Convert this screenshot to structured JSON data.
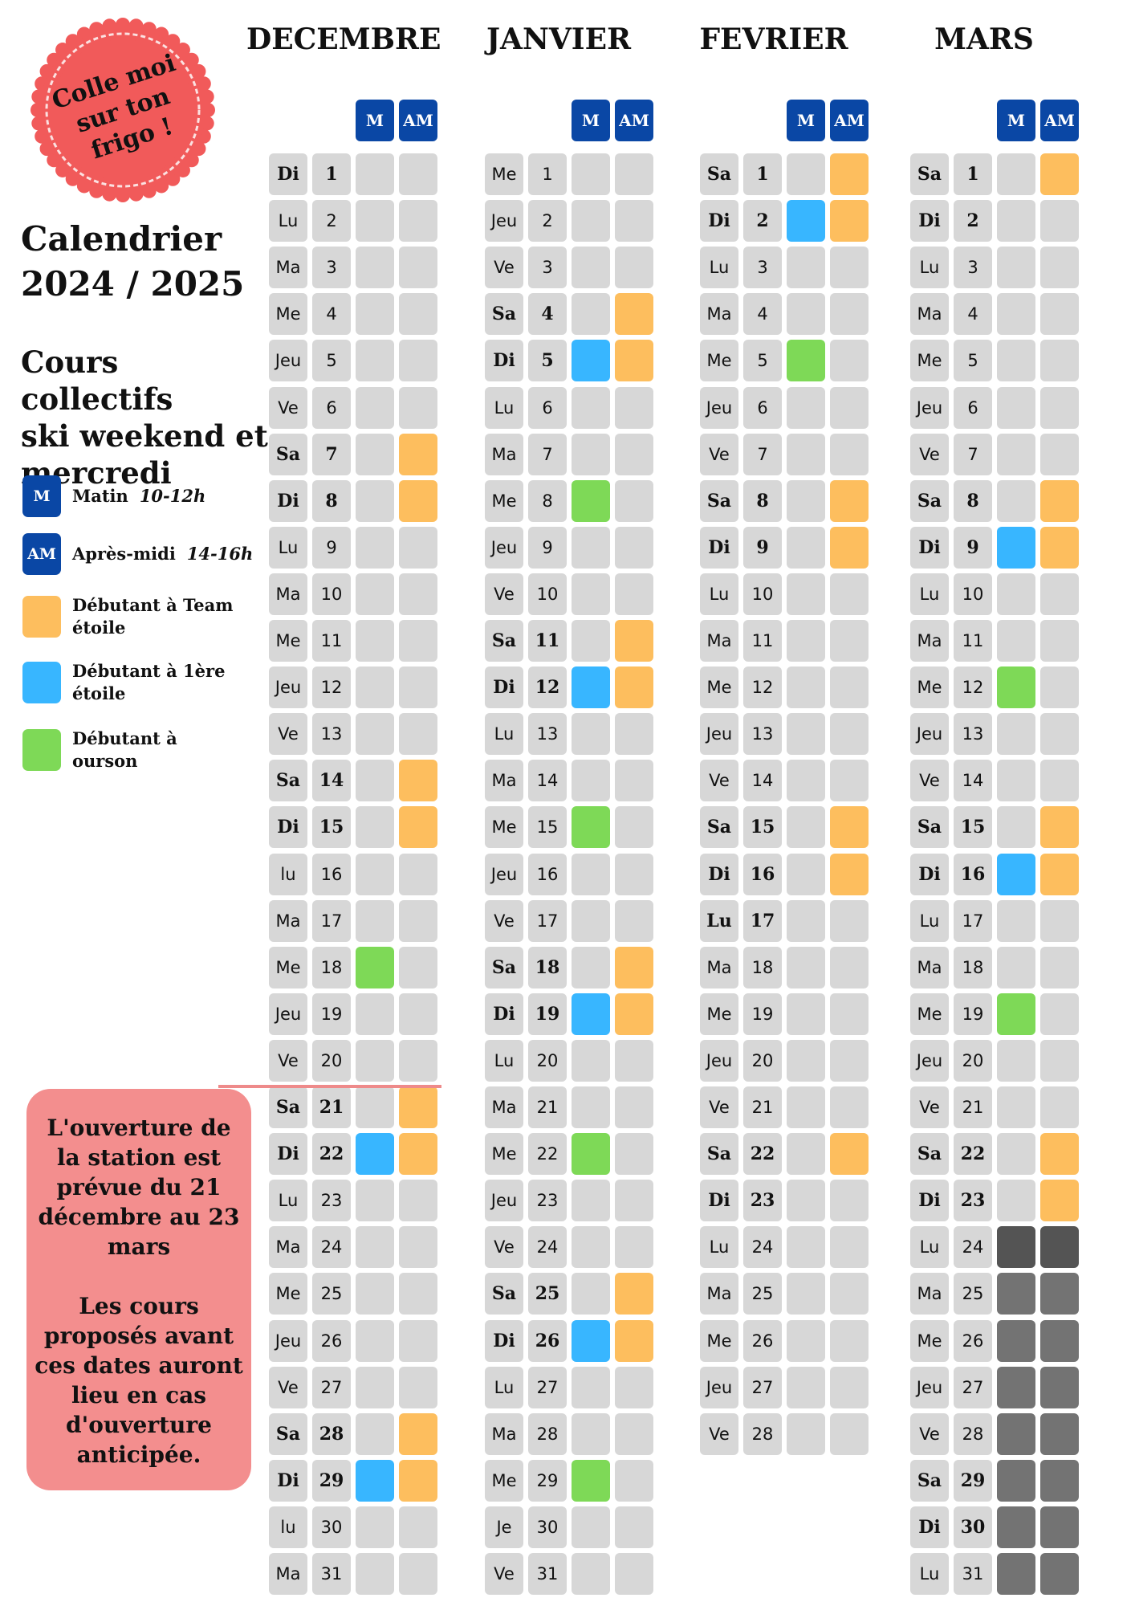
{
  "stamp": {
    "lines": [
      "Colle moi",
      "sur ton",
      "frigo !"
    ]
  },
  "title": {
    "line1": "Calendrier",
    "line2": "2024 / 2025"
  },
  "subtitle": {
    "line1": "Cours collectifs",
    "line2": "ski weekend et",
    "line3": "mercredi"
  },
  "legend": [
    {
      "badge": "M",
      "label": "Matin",
      "detail": "10-12h",
      "color": "#0a47a5"
    },
    {
      "badge": "AM",
      "label": "Après-midi",
      "detail": "14-16h",
      "color": "#0a47a5"
    },
    {
      "badge": "",
      "label": "Débutant à Team étoile",
      "detail": "",
      "color": "#fdbe5e"
    },
    {
      "badge": "",
      "label": "Débutant à 1ère étoile",
      "detail": "",
      "color": "#38b6ff"
    },
    {
      "badge": "",
      "label": "Débutant à ourson",
      "detail": "",
      "color": "#7ed957"
    }
  ],
  "colors": {
    "orange": "#fdbe5e",
    "blue": "#38b6ff",
    "green": "#7ed957",
    "grey": "#d7d7d7",
    "dark": "#545454",
    "closed": "#737373",
    "header": "#0a47a5"
  },
  "headers": {
    "morning": "M",
    "afternoon": "AM"
  },
  "notice": {
    "para1": "L'ouverture de la station est prévue du 21 décembre au 23 mars",
    "para2": "Les cours proposés avant ces dates auront lieu en cas d'ouverture anticipée."
  },
  "months": [
    {
      "name": "DECEMBRE",
      "days": [
        {
          "dow": "Di",
          "num": "1",
          "b": true,
          "m": "",
          "am": ""
        },
        {
          "dow": "Lu",
          "num": "2",
          "b": false,
          "m": "",
          "am": ""
        },
        {
          "dow": "Ma",
          "num": "3",
          "b": false,
          "m": "",
          "am": ""
        },
        {
          "dow": "Me",
          "num": "4",
          "b": false,
          "m": "",
          "am": ""
        },
        {
          "dow": "Jeu",
          "num": "5",
          "b": false,
          "m": "",
          "am": ""
        },
        {
          "dow": "Ve",
          "num": "6",
          "b": false,
          "m": "",
          "am": ""
        },
        {
          "dow": "Sa",
          "num": "7",
          "b": true,
          "m": "",
          "am": "orange"
        },
        {
          "dow": "Di",
          "num": "8",
          "b": true,
          "m": "",
          "am": "orange"
        },
        {
          "dow": "Lu",
          "num": "9",
          "b": false,
          "m": "",
          "am": ""
        },
        {
          "dow": "Ma",
          "num": "10",
          "b": false,
          "m": "",
          "am": ""
        },
        {
          "dow": "Me",
          "num": "11",
          "b": false,
          "m": "",
          "am": ""
        },
        {
          "dow": "Jeu",
          "num": "12",
          "b": false,
          "m": "",
          "am": ""
        },
        {
          "dow": "Ve",
          "num": "13",
          "b": false,
          "m": "",
          "am": ""
        },
        {
          "dow": "Sa",
          "num": "14",
          "b": true,
          "m": "",
          "am": "orange"
        },
        {
          "dow": "Di",
          "num": "15",
          "b": true,
          "m": "",
          "am": "orange"
        },
        {
          "dow": "lu",
          "num": "16",
          "b": false,
          "m": "",
          "am": ""
        },
        {
          "dow": "Ma",
          "num": "17",
          "b": false,
          "m": "",
          "am": ""
        },
        {
          "dow": "Me",
          "num": "18",
          "b": false,
          "m": "green",
          "am": ""
        },
        {
          "dow": "Jeu",
          "num": "19",
          "b": false,
          "m": "",
          "am": ""
        },
        {
          "dow": "Ve",
          "num": "20",
          "b": false,
          "m": "",
          "am": ""
        },
        {
          "dow": "Sa",
          "num": "21",
          "b": true,
          "m": "",
          "am": "orange"
        },
        {
          "dow": "Di",
          "num": "22",
          "b": true,
          "m": "blue",
          "am": "orange"
        },
        {
          "dow": "Lu",
          "num": "23",
          "b": false,
          "m": "",
          "am": ""
        },
        {
          "dow": "Ma",
          "num": "24",
          "b": false,
          "m": "",
          "am": ""
        },
        {
          "dow": "Me",
          "num": "25",
          "b": false,
          "m": "",
          "am": ""
        },
        {
          "dow": "Jeu",
          "num": "26",
          "b": false,
          "m": "",
          "am": ""
        },
        {
          "dow": "Ve",
          "num": "27",
          "b": false,
          "m": "",
          "am": ""
        },
        {
          "dow": "Sa",
          "num": "28",
          "b": true,
          "m": "",
          "am": "orange"
        },
        {
          "dow": "Di",
          "num": "29",
          "b": true,
          "m": "blue",
          "am": "orange"
        },
        {
          "dow": "lu",
          "num": "30",
          "b": false,
          "m": "",
          "am": ""
        },
        {
          "dow": "Ma",
          "num": "31",
          "b": false,
          "m": "",
          "am": ""
        }
      ]
    },
    {
      "name": "JANVIER",
      "days": [
        {
          "dow": "Me",
          "num": "1",
          "b": false,
          "m": "",
          "am": ""
        },
        {
          "dow": "Jeu",
          "num": "2",
          "b": false,
          "m": "",
          "am": ""
        },
        {
          "dow": "Ve",
          "num": "3",
          "b": false,
          "m": "",
          "am": ""
        },
        {
          "dow": "Sa",
          "num": "4",
          "b": true,
          "m": "",
          "am": "orange"
        },
        {
          "dow": "Di",
          "num": "5",
          "b": true,
          "m": "blue",
          "am": "orange"
        },
        {
          "dow": "Lu",
          "num": "6",
          "b": false,
          "m": "",
          "am": ""
        },
        {
          "dow": "Ma",
          "num": "7",
          "b": false,
          "m": "",
          "am": ""
        },
        {
          "dow": "Me",
          "num": "8",
          "b": false,
          "m": "green",
          "am": ""
        },
        {
          "dow": "Jeu",
          "num": "9",
          "b": false,
          "m": "",
          "am": ""
        },
        {
          "dow": "Ve",
          "num": "10",
          "b": false,
          "m": "",
          "am": ""
        },
        {
          "dow": "Sa",
          "num": "11",
          "b": true,
          "m": "",
          "am": "orange"
        },
        {
          "dow": "Di",
          "num": "12",
          "b": true,
          "m": "blue",
          "am": "orange"
        },
        {
          "dow": "Lu",
          "num": "13",
          "b": false,
          "m": "",
          "am": ""
        },
        {
          "dow": "Ma",
          "num": "14",
          "b": false,
          "m": "",
          "am": ""
        },
        {
          "dow": "Me",
          "num": "15",
          "b": false,
          "m": "green",
          "am": ""
        },
        {
          "dow": "Jeu",
          "num": "16",
          "b": false,
          "m": "",
          "am": ""
        },
        {
          "dow": "Ve",
          "num": "17",
          "b": false,
          "m": "",
          "am": ""
        },
        {
          "dow": "Sa",
          "num": "18",
          "b": true,
          "m": "",
          "am": "orange"
        },
        {
          "dow": "Di",
          "num": "19",
          "b": true,
          "m": "blue",
          "am": "orange"
        },
        {
          "dow": "Lu",
          "num": "20",
          "b": false,
          "m": "",
          "am": ""
        },
        {
          "dow": "Ma",
          "num": "21",
          "b": false,
          "m": "",
          "am": ""
        },
        {
          "dow": "Me",
          "num": "22",
          "b": false,
          "m": "green",
          "am": ""
        },
        {
          "dow": "Jeu",
          "num": "23",
          "b": false,
          "m": "",
          "am": ""
        },
        {
          "dow": "Ve",
          "num": "24",
          "b": false,
          "m": "",
          "am": ""
        },
        {
          "dow": "Sa",
          "num": "25",
          "b": true,
          "m": "",
          "am": "orange"
        },
        {
          "dow": "Di",
          "num": "26",
          "b": true,
          "m": "blue",
          "am": "orange"
        },
        {
          "dow": "Lu",
          "num": "27",
          "b": false,
          "m": "",
          "am": ""
        },
        {
          "dow": "Ma",
          "num": "28",
          "b": false,
          "m": "",
          "am": ""
        },
        {
          "dow": "Me",
          "num": "29",
          "b": false,
          "m": "green",
          "am": ""
        },
        {
          "dow": "Je",
          "num": "30",
          "b": false,
          "m": "",
          "am": ""
        },
        {
          "dow": "Ve",
          "num": "31",
          "b": false,
          "m": "",
          "am": ""
        }
      ]
    },
    {
      "name": "FEVRIER",
      "days": [
        {
          "dow": "Sa",
          "num": "1",
          "b": true,
          "m": "",
          "am": "orange"
        },
        {
          "dow": "Di",
          "num": "2",
          "b": true,
          "m": "blue",
          "am": "orange"
        },
        {
          "dow": "Lu",
          "num": "3",
          "b": false,
          "m": "",
          "am": ""
        },
        {
          "dow": "Ma",
          "num": "4",
          "b": false,
          "m": "",
          "am": ""
        },
        {
          "dow": "Me",
          "num": "5",
          "b": false,
          "m": "green",
          "am": ""
        },
        {
          "dow": "Jeu",
          "num": "6",
          "b": false,
          "m": "",
          "am": ""
        },
        {
          "dow": "Ve",
          "num": "7",
          "b": false,
          "m": "",
          "am": ""
        },
        {
          "dow": "Sa",
          "num": "8",
          "b": true,
          "m": "",
          "am": "orange"
        },
        {
          "dow": "Di",
          "num": "9",
          "b": true,
          "m": "",
          "am": "orange"
        },
        {
          "dow": "Lu",
          "num": "10",
          "b": false,
          "m": "",
          "am": ""
        },
        {
          "dow": "Ma",
          "num": "11",
          "b": false,
          "m": "",
          "am": ""
        },
        {
          "dow": "Me",
          "num": "12",
          "b": false,
          "m": "",
          "am": ""
        },
        {
          "dow": "Jeu",
          "num": "13",
          "b": false,
          "m": "",
          "am": ""
        },
        {
          "dow": "Ve",
          "num": "14",
          "b": false,
          "m": "",
          "am": ""
        },
        {
          "dow": "Sa",
          "num": "15",
          "b": true,
          "m": "",
          "am": "orange"
        },
        {
          "dow": "Di",
          "num": "16",
          "b": true,
          "m": "",
          "am": "orange"
        },
        {
          "dow": "Lu",
          "num": "17",
          "b": true,
          "m": "",
          "am": ""
        },
        {
          "dow": "Ma",
          "num": "18",
          "b": false,
          "m": "",
          "am": ""
        },
        {
          "dow": "Me",
          "num": "19",
          "b": false,
          "m": "",
          "am": ""
        },
        {
          "dow": "Jeu",
          "num": "20",
          "b": false,
          "m": "",
          "am": ""
        },
        {
          "dow": "Ve",
          "num": "21",
          "b": false,
          "m": "",
          "am": ""
        },
        {
          "dow": "Sa",
          "num": "22",
          "b": true,
          "m": "",
          "am": "orange"
        },
        {
          "dow": "Di",
          "num": "23",
          "b": true,
          "m": "",
          "am": ""
        },
        {
          "dow": "Lu",
          "num": "24",
          "b": false,
          "m": "",
          "am": ""
        },
        {
          "dow": "Ma",
          "num": "25",
          "b": false,
          "m": "",
          "am": ""
        },
        {
          "dow": "Me",
          "num": "26",
          "b": false,
          "m": "",
          "am": ""
        },
        {
          "dow": "Jeu",
          "num": "27",
          "b": false,
          "m": "",
          "am": ""
        },
        {
          "dow": "Ve",
          "num": "28",
          "b": false,
          "m": "",
          "am": ""
        }
      ]
    },
    {
      "name": "MARS",
      "days": [
        {
          "dow": "Sa",
          "num": "1",
          "b": true,
          "m": "",
          "am": "orange"
        },
        {
          "dow": "Di",
          "num": "2",
          "b": true,
          "m": "",
          "am": ""
        },
        {
          "dow": "Lu",
          "num": "3",
          "b": false,
          "m": "",
          "am": ""
        },
        {
          "dow": "Ma",
          "num": "4",
          "b": false,
          "m": "",
          "am": ""
        },
        {
          "dow": "Me",
          "num": "5",
          "b": false,
          "m": "",
          "am": ""
        },
        {
          "dow": "Jeu",
          "num": "6",
          "b": false,
          "m": "",
          "am": ""
        },
        {
          "dow": "Ve",
          "num": "7",
          "b": false,
          "m": "",
          "am": ""
        },
        {
          "dow": "Sa",
          "num": "8",
          "b": true,
          "m": "",
          "am": "orange"
        },
        {
          "dow": "Di",
          "num": "9",
          "b": true,
          "m": "blue",
          "am": "orange"
        },
        {
          "dow": "Lu",
          "num": "10",
          "b": false,
          "m": "",
          "am": ""
        },
        {
          "dow": "Ma",
          "num": "11",
          "b": false,
          "m": "",
          "am": ""
        },
        {
          "dow": "Me",
          "num": "12",
          "b": false,
          "m": "green",
          "am": ""
        },
        {
          "dow": "Jeu",
          "num": "13",
          "b": false,
          "m": "",
          "am": ""
        },
        {
          "dow": "Ve",
          "num": "14",
          "b": false,
          "m": "",
          "am": ""
        },
        {
          "dow": "Sa",
          "num": "15",
          "b": true,
          "m": "",
          "am": "orange"
        },
        {
          "dow": "Di",
          "num": "16",
          "b": true,
          "m": "blue",
          "am": "orange"
        },
        {
          "dow": "Lu",
          "num": "17",
          "b": false,
          "m": "",
          "am": ""
        },
        {
          "dow": "Ma",
          "num": "18",
          "b": false,
          "m": "",
          "am": ""
        },
        {
          "dow": "Me",
          "num": "19",
          "b": false,
          "m": "green",
          "am": ""
        },
        {
          "dow": "Jeu",
          "num": "20",
          "b": false,
          "m": "",
          "am": ""
        },
        {
          "dow": "Ve",
          "num": "21",
          "b": false,
          "m": "",
          "am": ""
        },
        {
          "dow": "Sa",
          "num": "22",
          "b": true,
          "m": "",
          "am": "orange"
        },
        {
          "dow": "Di",
          "num": "23",
          "b": true,
          "m": "",
          "am": "orange"
        },
        {
          "dow": "Lu",
          "num": "24",
          "b": false,
          "m": "dark",
          "am": "dark"
        },
        {
          "dow": "Ma",
          "num": "25",
          "b": false,
          "m": "closed",
          "am": "closed"
        },
        {
          "dow": "Me",
          "num": "26",
          "b": false,
          "m": "closed",
          "am": "closed"
        },
        {
          "dow": "Jeu",
          "num": "27",
          "b": false,
          "m": "closed",
          "am": "closed"
        },
        {
          "dow": "Ve",
          "num": "28",
          "b": false,
          "m": "closed",
          "am": "closed"
        },
        {
          "dow": "Sa",
          "num": "29",
          "b": true,
          "m": "closed",
          "am": "closed"
        },
        {
          "dow": "Di",
          "num": "30",
          "b": true,
          "m": "closed",
          "am": "closed"
        },
        {
          "dow": "Lu",
          "num": "31",
          "b": false,
          "m": "closed",
          "am": "closed"
        }
      ]
    }
  ]
}
